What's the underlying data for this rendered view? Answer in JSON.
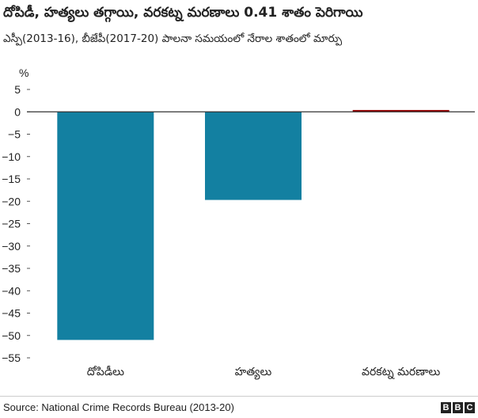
{
  "title": "దోపిడీ, హత్యలు తగ్గాయి, వరకట్న మరణాలు 0.41 శాతం పెరిగాయి",
  "subtitle": "ఎస్పీ(2013-16), బీజేపీ(2017-20) పాలనా సమయంలో నేరాల శాతంలో మార్పు",
  "source": "Source: National Crime Records Bureau (2013-20)",
  "logo_letters": [
    "B",
    "B",
    "C"
  ],
  "chart_data": {
    "type": "bar",
    "title": "దోపిడీ, హత్యలు తగ్గాయి, వరకట్న మరణాలు 0.41 శాతం పెరిగాయి",
    "subtitle": "ఎస్పీ(2013-16), బీజేపీ(2017-20) పాలనా సమయంలో నేరాల శాతంలో మార్పు",
    "ylabel": "%",
    "xlabel": "",
    "categories": [
      "దోపిడీలు",
      "హత్యలు",
      "వరకట్న మరణాలు"
    ],
    "values": [
      -51,
      -19.7,
      0.41
    ],
    "bar_colors": [
      "#1380a1",
      "#1380a1",
      "#990000"
    ],
    "ylim": [
      -55,
      5
    ],
    "yticks": [
      5,
      0,
      -5,
      -10,
      -15,
      -20,
      -25,
      -30,
      -35,
      -40,
      -45,
      -50,
      -55
    ],
    "ytick_labels": [
      "5",
      "0",
      "−5",
      "−10",
      "−15",
      "−20",
      "−25",
      "−30",
      "−35",
      "−40",
      "−45",
      "−50",
      "−55"
    ],
    "grid": false,
    "legend": "none"
  }
}
